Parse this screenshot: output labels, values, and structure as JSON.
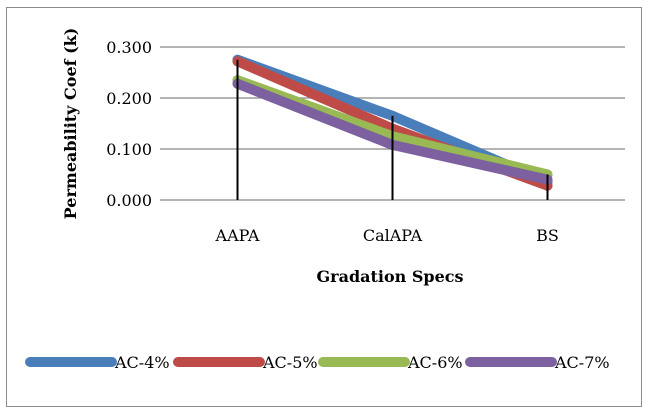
{
  "chart_data": {
    "type": "line",
    "categories": [
      "AAPA",
      "CalAPA",
      "BS"
    ],
    "xlabel": "Gradation Specs",
    "ylabel": "Permeability Coef (k)",
    "ylim": [
      0,
      0.3
    ],
    "yticks": [
      "0.000",
      "0.100",
      "0.200",
      "0.300"
    ],
    "grid": true,
    "legend_position": "bottom",
    "series": [
      {
        "name": "AC-4%",
        "color": "#4a7ebb",
        "values": [
          0.275,
          0.165,
          0.035
        ]
      },
      {
        "name": "AC-5%",
        "color": "#be4b48",
        "values": [
          0.272,
          0.14,
          0.028
        ]
      },
      {
        "name": "AC-6%",
        "color": "#98b954",
        "values": [
          0.235,
          0.125,
          0.05
        ]
      },
      {
        "name": "AC-7%",
        "color": "#7d60a0",
        "values": [
          0.228,
          0.108,
          0.04
        ]
      }
    ],
    "error_bars": {
      "color": "#000000",
      "values": [
        0.275,
        0.165,
        0.05
      ]
    }
  }
}
